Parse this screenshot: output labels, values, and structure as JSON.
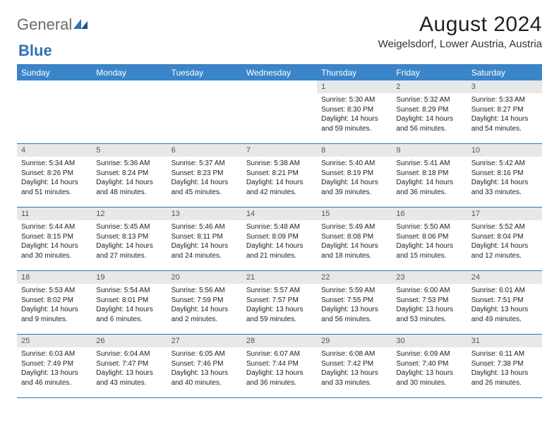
{
  "logo": {
    "text1": "General",
    "text2": "Blue"
  },
  "title": "August 2024",
  "location": "Weigelsdorf, Lower Austria, Austria",
  "colors": {
    "header_bg": "#3a85c9",
    "header_text": "#ffffff",
    "border": "#2f71b6",
    "daynum_bg": "#e8e8e8",
    "daynum_text": "#555555",
    "body_text": "#222222",
    "logo_gray": "#6a6a6a",
    "logo_blue": "#2f71b6"
  },
  "dow": [
    "Sunday",
    "Monday",
    "Tuesday",
    "Wednesday",
    "Thursday",
    "Friday",
    "Saturday"
  ],
  "leading_blanks": 4,
  "days": [
    {
      "n": "1",
      "sr": "5:30 AM",
      "ss": "8:30 PM",
      "dl": "14 hours and 59 minutes."
    },
    {
      "n": "2",
      "sr": "5:32 AM",
      "ss": "8:29 PM",
      "dl": "14 hours and 56 minutes."
    },
    {
      "n": "3",
      "sr": "5:33 AM",
      "ss": "8:27 PM",
      "dl": "14 hours and 54 minutes."
    },
    {
      "n": "4",
      "sr": "5:34 AM",
      "ss": "8:26 PM",
      "dl": "14 hours and 51 minutes."
    },
    {
      "n": "5",
      "sr": "5:36 AM",
      "ss": "8:24 PM",
      "dl": "14 hours and 48 minutes."
    },
    {
      "n": "6",
      "sr": "5:37 AM",
      "ss": "8:23 PM",
      "dl": "14 hours and 45 minutes."
    },
    {
      "n": "7",
      "sr": "5:38 AM",
      "ss": "8:21 PM",
      "dl": "14 hours and 42 minutes."
    },
    {
      "n": "8",
      "sr": "5:40 AM",
      "ss": "8:19 PM",
      "dl": "14 hours and 39 minutes."
    },
    {
      "n": "9",
      "sr": "5:41 AM",
      "ss": "8:18 PM",
      "dl": "14 hours and 36 minutes."
    },
    {
      "n": "10",
      "sr": "5:42 AM",
      "ss": "8:16 PM",
      "dl": "14 hours and 33 minutes."
    },
    {
      "n": "11",
      "sr": "5:44 AM",
      "ss": "8:15 PM",
      "dl": "14 hours and 30 minutes."
    },
    {
      "n": "12",
      "sr": "5:45 AM",
      "ss": "8:13 PM",
      "dl": "14 hours and 27 minutes."
    },
    {
      "n": "13",
      "sr": "5:46 AM",
      "ss": "8:11 PM",
      "dl": "14 hours and 24 minutes."
    },
    {
      "n": "14",
      "sr": "5:48 AM",
      "ss": "8:09 PM",
      "dl": "14 hours and 21 minutes."
    },
    {
      "n": "15",
      "sr": "5:49 AM",
      "ss": "8:08 PM",
      "dl": "14 hours and 18 minutes."
    },
    {
      "n": "16",
      "sr": "5:50 AM",
      "ss": "8:06 PM",
      "dl": "14 hours and 15 minutes."
    },
    {
      "n": "17",
      "sr": "5:52 AM",
      "ss": "8:04 PM",
      "dl": "14 hours and 12 minutes."
    },
    {
      "n": "18",
      "sr": "5:53 AM",
      "ss": "8:02 PM",
      "dl": "14 hours and 9 minutes."
    },
    {
      "n": "19",
      "sr": "5:54 AM",
      "ss": "8:01 PM",
      "dl": "14 hours and 6 minutes."
    },
    {
      "n": "20",
      "sr": "5:56 AM",
      "ss": "7:59 PM",
      "dl": "14 hours and 2 minutes."
    },
    {
      "n": "21",
      "sr": "5:57 AM",
      "ss": "7:57 PM",
      "dl": "13 hours and 59 minutes."
    },
    {
      "n": "22",
      "sr": "5:59 AM",
      "ss": "7:55 PM",
      "dl": "13 hours and 56 minutes."
    },
    {
      "n": "23",
      "sr": "6:00 AM",
      "ss": "7:53 PM",
      "dl": "13 hours and 53 minutes."
    },
    {
      "n": "24",
      "sr": "6:01 AM",
      "ss": "7:51 PM",
      "dl": "13 hours and 49 minutes."
    },
    {
      "n": "25",
      "sr": "6:03 AM",
      "ss": "7:49 PM",
      "dl": "13 hours and 46 minutes."
    },
    {
      "n": "26",
      "sr": "6:04 AM",
      "ss": "7:47 PM",
      "dl": "13 hours and 43 minutes."
    },
    {
      "n": "27",
      "sr": "6:05 AM",
      "ss": "7:46 PM",
      "dl": "13 hours and 40 minutes."
    },
    {
      "n": "28",
      "sr": "6:07 AM",
      "ss": "7:44 PM",
      "dl": "13 hours and 36 minutes."
    },
    {
      "n": "29",
      "sr": "6:08 AM",
      "ss": "7:42 PM",
      "dl": "13 hours and 33 minutes."
    },
    {
      "n": "30",
      "sr": "6:09 AM",
      "ss": "7:40 PM",
      "dl": "13 hours and 30 minutes."
    },
    {
      "n": "31",
      "sr": "6:11 AM",
      "ss": "7:38 PM",
      "dl": "13 hours and 26 minutes."
    }
  ],
  "labels": {
    "sunrise": "Sunrise: ",
    "sunset": "Sunset: ",
    "daylight": "Daylight: "
  }
}
